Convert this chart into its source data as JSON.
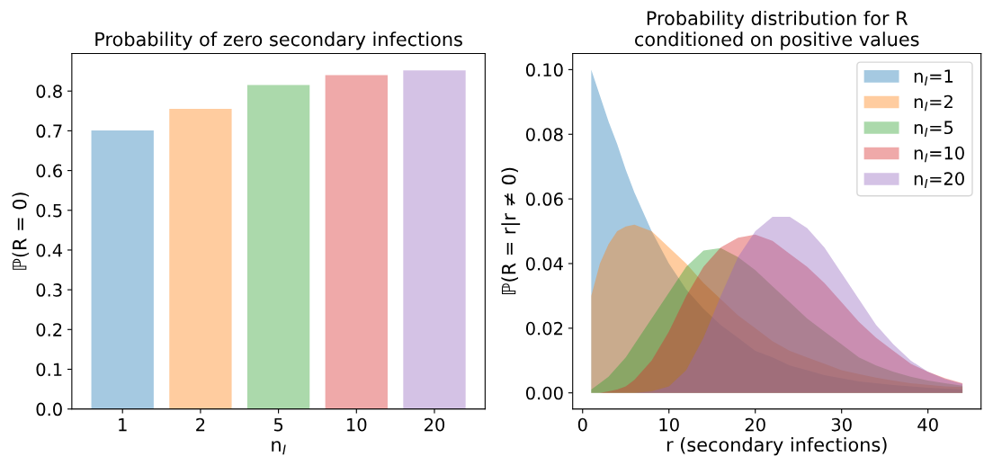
{
  "chart_data": [
    {
      "type": "bar",
      "title": "Probability of zero secondary infections",
      "xlabel": "n$_{I}$",
      "ylabel": "ℙ(R = 0)",
      "categories": [
        "1",
        "2",
        "5",
        "10",
        "20"
      ],
      "values": [
        0.701,
        0.755,
        0.815,
        0.84,
        0.852
      ],
      "colors": [
        "#1f77b4",
        "#ff7f0e",
        "#2ca02c",
        "#d62728",
        "#9467bd"
      ],
      "ylim": [
        0,
        0.8946
      ],
      "yticks": [
        {
          "value": 0,
          "label": "0.0"
        },
        0.1,
        0.2,
        0.3,
        0.4,
        0.5,
        0.6,
        0.7,
        0.8
      ],
      "grid": false,
      "legend": false
    },
    {
      "type": "area",
      "title": "Probability distribution for R\nconditioned on positive values",
      "xlabel": "r (secondary infections)",
      "ylabel": "ℙ(R = r|r ≠ 0)",
      "xlim": [
        -1.15,
        46.15
      ],
      "xticks": [
        0,
        10,
        20,
        30,
        40
      ],
      "ylim": [
        -0.005,
        0.105
      ],
      "yticks": [
        {
          "value": 0,
          "label": "0.00"
        },
        {
          "value": 0.02,
          "label": "0.02"
        },
        {
          "value": 0.04,
          "label": "0.04"
        },
        {
          "value": 0.06,
          "label": "0.06"
        },
        {
          "value": 0.08,
          "label": "0.08"
        },
        {
          "value": 0.1,
          "label": "0.10"
        }
      ],
      "grid": false,
      "legend": "top right",
      "x": [
        1,
        2,
        3,
        4,
        5,
        6,
        8,
        10,
        12,
        14,
        16,
        18,
        20,
        22,
        24,
        26,
        28,
        30,
        32,
        34,
        36,
        38,
        40,
        42,
        44
      ],
      "series": [
        {
          "name": "n$_{I}$=1",
          "color": "#1f77b4",
          "values": [
            0.1,
            0.092,
            0.084,
            0.077,
            0.069,
            0.062,
            0.05,
            0.04,
            0.032,
            0.026,
            0.021,
            0.017,
            0.013,
            0.011,
            0.0085,
            0.007,
            0.0055,
            0.0045,
            0.0035,
            0.003,
            0.0024,
            0.002,
            0.0016,
            0.0013,
            0.001
          ]
        },
        {
          "name": "n$_{I}$=2",
          "color": "#ff7f0e",
          "values": [
            0.03,
            0.04,
            0.046,
            0.05,
            0.0515,
            0.052,
            0.05,
            0.045,
            0.04,
            0.034,
            0.029,
            0.024,
            0.02,
            0.016,
            0.013,
            0.011,
            0.009,
            0.007,
            0.0058,
            0.0047,
            0.0038,
            0.003,
            0.0025,
            0.002,
            0.0018
          ]
        },
        {
          "name": "n$_{I}$=5",
          "color": "#2ca02c",
          "values": [
            0.001,
            0.003,
            0.005,
            0.008,
            0.011,
            0.015,
            0.023,
            0.031,
            0.039,
            0.044,
            0.0448,
            0.042,
            0.038,
            0.033,
            0.028,
            0.023,
            0.019,
            0.015,
            0.011,
            0.0085,
            0.0065,
            0.005,
            0.0038,
            0.003,
            0.0022
          ]
        },
        {
          "name": "n$_{I}$=10",
          "color": "#d62728",
          "values": [
            0,
            0,
            0.0005,
            0.001,
            0.002,
            0.004,
            0.01,
            0.019,
            0.03,
            0.039,
            0.045,
            0.048,
            0.049,
            0.047,
            0.043,
            0.039,
            0.034,
            0.028,
            0.022,
            0.017,
            0.013,
            0.009,
            0.0065,
            0.0045,
            0.003
          ]
        },
        {
          "name": "n$_{I}$=20",
          "color": "#9467bd",
          "values": [
            0,
            0,
            0,
            0,
            0,
            0,
            0.0005,
            0.002,
            0.007,
            0.017,
            0.03,
            0.042,
            0.05,
            0.0545,
            0.0545,
            0.051,
            0.045,
            0.037,
            0.029,
            0.021,
            0.015,
            0.01,
            0.0065,
            0.0042,
            0.0028
          ]
        }
      ]
    }
  ]
}
